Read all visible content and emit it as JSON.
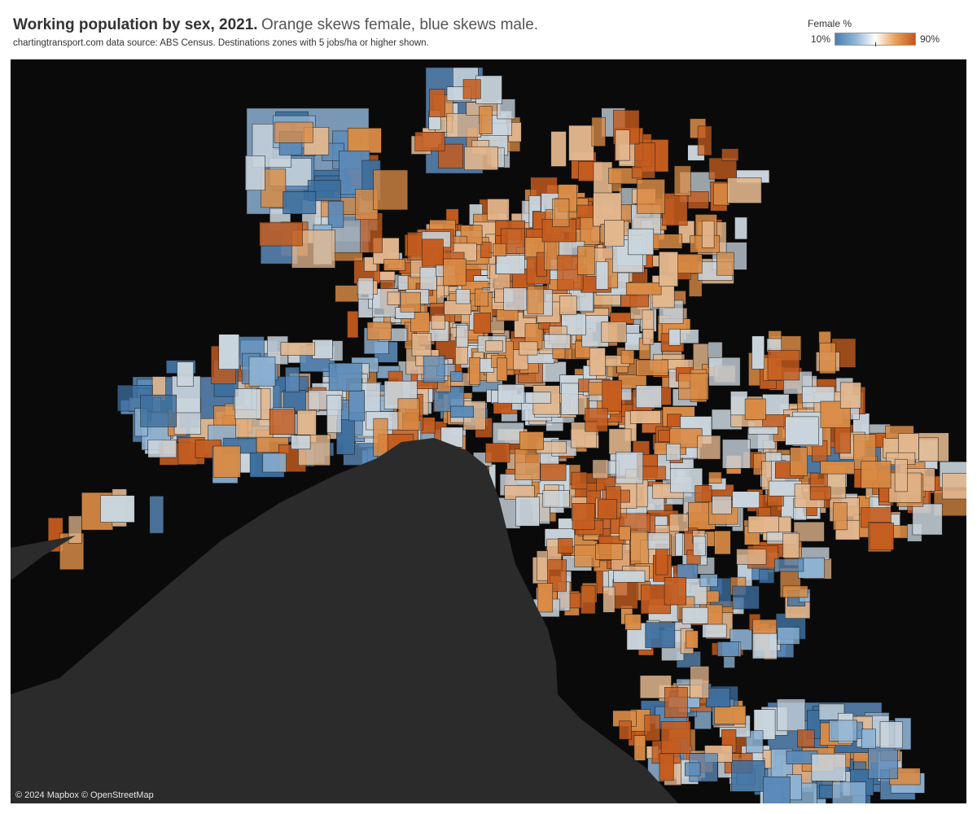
{
  "header": {
    "title": "Working population by sex, 2021.",
    "subtitle": "Orange skews female, blue skews male.",
    "source": "chartingtransport.com  data source: ABS Census. Destinations zones with 5 jobs/ha or higher shown."
  },
  "legend": {
    "title": "Female %",
    "min_label": "10%",
    "max_label": "90%",
    "colors": [
      "#4a7fb0",
      "#8fb4d6",
      "#ffffff",
      "#e8a25a",
      "#c4561a"
    ]
  },
  "map": {
    "attribution": "© 2024 Mapbox © OpenStreetMap",
    "land_color": "#0a0a0a",
    "water_color": "#2b2b2b",
    "palette": {
      "strong_blue": "#3d6f9e",
      "blue": "#5b8ab8",
      "light_blue": "#8db2d3",
      "pale": "#c9d4dc",
      "peach": "#e2b78e",
      "orange": "#d98b45",
      "strong_orange": "#c45c1f"
    }
  }
}
